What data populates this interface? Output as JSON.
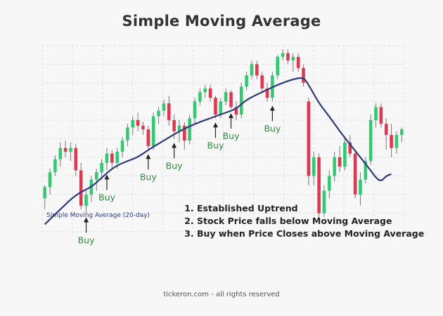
{
  "header": {
    "title": "Simple Moving Average"
  },
  "footer": {
    "text": "tickeron.com - all rights reserved"
  },
  "notes": [
    "Established Uptrend",
    "Stock Price falls below Moving Average",
    "Buy when Price Closes above Moving Average"
  ],
  "sma_label": "Simple Moving Average (20-day)",
  "colors": {
    "up": "#2ecc71",
    "down": "#e8334f",
    "sma": "#2e3b7a",
    "buy": "#2e8b3e",
    "wick": "#777777"
  },
  "chart_data": {
    "type": "candlestick",
    "title": "Simple Moving Average",
    "xlabel": "",
    "ylabel": "",
    "ylim": [
      0,
      100
    ],
    "grid": true,
    "candles": [
      {
        "o": 18,
        "h": 25,
        "l": 12,
        "c": 24
      },
      {
        "o": 24,
        "h": 34,
        "l": 20,
        "c": 32
      },
      {
        "o": 32,
        "h": 41,
        "l": 30,
        "c": 39
      },
      {
        "o": 39,
        "h": 48,
        "l": 35,
        "c": 45
      },
      {
        "o": 45,
        "h": 49,
        "l": 40,
        "c": 43
      },
      {
        "o": 43,
        "h": 48,
        "l": 38,
        "c": 45
      },
      {
        "o": 45,
        "h": 47,
        "l": 30,
        "c": 33
      },
      {
        "o": 33,
        "h": 37,
        "l": 12,
        "c": 14
      },
      {
        "o": 14,
        "h": 22,
        "l": 10,
        "c": 20
      },
      {
        "o": 20,
        "h": 30,
        "l": 16,
        "c": 28
      },
      {
        "o": 28,
        "h": 34,
        "l": 22,
        "c": 32
      },
      {
        "o": 32,
        "h": 39,
        "l": 28,
        "c": 37
      },
      {
        "o": 37,
        "h": 45,
        "l": 33,
        "c": 42
      },
      {
        "o": 42,
        "h": 44,
        "l": 34,
        "c": 37
      },
      {
        "o": 37,
        "h": 45,
        "l": 34,
        "c": 43
      },
      {
        "o": 43,
        "h": 51,
        "l": 40,
        "c": 49
      },
      {
        "o": 49,
        "h": 58,
        "l": 46,
        "c": 56
      },
      {
        "o": 56,
        "h": 62,
        "l": 52,
        "c": 60
      },
      {
        "o": 60,
        "h": 64,
        "l": 54,
        "c": 57
      },
      {
        "o": 57,
        "h": 59,
        "l": 52,
        "c": 55
      },
      {
        "o": 55,
        "h": 57,
        "l": 44,
        "c": 46
      },
      {
        "o": 46,
        "h": 64,
        "l": 44,
        "c": 62
      },
      {
        "o": 62,
        "h": 67,
        "l": 58,
        "c": 65
      },
      {
        "o": 65,
        "h": 71,
        "l": 62,
        "c": 69
      },
      {
        "o": 69,
        "h": 73,
        "l": 57,
        "c": 60
      },
      {
        "o": 60,
        "h": 63,
        "l": 50,
        "c": 54
      },
      {
        "o": 54,
        "h": 60,
        "l": 48,
        "c": 57
      },
      {
        "o": 57,
        "h": 59,
        "l": 44,
        "c": 49
      },
      {
        "o": 49,
        "h": 63,
        "l": 47,
        "c": 61
      },
      {
        "o": 61,
        "h": 72,
        "l": 58,
        "c": 70
      },
      {
        "o": 70,
        "h": 77,
        "l": 68,
        "c": 75
      },
      {
        "o": 75,
        "h": 79,
        "l": 72,
        "c": 77
      },
      {
        "o": 77,
        "h": 79,
        "l": 70,
        "c": 72
      },
      {
        "o": 72,
        "h": 73,
        "l": 61,
        "c": 63
      },
      {
        "o": 63,
        "h": 72,
        "l": 61,
        "c": 70
      },
      {
        "o": 70,
        "h": 77,
        "l": 68,
        "c": 75
      },
      {
        "o": 75,
        "h": 76,
        "l": 66,
        "c": 67
      },
      {
        "o": 67,
        "h": 70,
        "l": 60,
        "c": 63
      },
      {
        "o": 63,
        "h": 80,
        "l": 61,
        "c": 78
      },
      {
        "o": 78,
        "h": 86,
        "l": 76,
        "c": 84
      },
      {
        "o": 84,
        "h": 92,
        "l": 82,
        "c": 90
      },
      {
        "o": 90,
        "h": 92,
        "l": 82,
        "c": 84
      },
      {
        "o": 84,
        "h": 86,
        "l": 75,
        "c": 77
      },
      {
        "o": 77,
        "h": 80,
        "l": 70,
        "c": 72
      },
      {
        "o": 72,
        "h": 86,
        "l": 70,
        "c": 84
      },
      {
        "o": 84,
        "h": 95,
        "l": 82,
        "c": 94
      },
      {
        "o": 94,
        "h": 98,
        "l": 92,
        "c": 96
      },
      {
        "o": 96,
        "h": 98,
        "l": 90,
        "c": 92
      },
      {
        "o": 92,
        "h": 96,
        "l": 86,
        "c": 94
      },
      {
        "o": 94,
        "h": 96,
        "l": 86,
        "c": 88
      },
      {
        "o": 88,
        "h": 90,
        "l": 78,
        "c": 80
      },
      {
        "o": 70,
        "h": 72,
        "l": 25,
        "c": 30
      },
      {
        "o": 30,
        "h": 43,
        "l": 25,
        "c": 40
      },
      {
        "o": 40,
        "h": 42,
        "l": 5,
        "c": 10
      },
      {
        "o": 10,
        "h": 25,
        "l": 8,
        "c": 22
      },
      {
        "o": 22,
        "h": 33,
        "l": 18,
        "c": 30
      },
      {
        "o": 30,
        "h": 43,
        "l": 27,
        "c": 40
      },
      {
        "o": 40,
        "h": 46,
        "l": 32,
        "c": 35
      },
      {
        "o": 35,
        "h": 50,
        "l": 33,
        "c": 48
      },
      {
        "o": 48,
        "h": 52,
        "l": 40,
        "c": 42
      },
      {
        "o": 42,
        "h": 43,
        "l": 18,
        "c": 20
      },
      {
        "o": 20,
        "h": 32,
        "l": 14,
        "c": 28
      },
      {
        "o": 28,
        "h": 40,
        "l": 26,
        "c": 38
      },
      {
        "o": 38,
        "h": 63,
        "l": 36,
        "c": 60
      },
      {
        "o": 60,
        "h": 69,
        "l": 56,
        "c": 67
      },
      {
        "o": 67,
        "h": 69,
        "l": 56,
        "c": 58
      },
      {
        "o": 58,
        "h": 61,
        "l": 44,
        "c": 52
      },
      {
        "o": 52,
        "h": 58,
        "l": 40,
        "c": 45
      },
      {
        "o": 45,
        "h": 54,
        "l": 42,
        "c": 52
      },
      {
        "o": 52,
        "h": 56,
        "l": 48,
        "c": 55
      }
    ],
    "sma": [
      {
        "i": 0,
        "v": 4
      },
      {
        "i": 3,
        "v": 12
      },
      {
        "i": 6,
        "v": 20
      },
      {
        "i": 9,
        "v": 24
      },
      {
        "i": 11,
        "v": 29
      },
      {
        "i": 13,
        "v": 34
      },
      {
        "i": 15,
        "v": 37
      },
      {
        "i": 18,
        "v": 40
      },
      {
        "i": 20,
        "v": 44
      },
      {
        "i": 23,
        "v": 49
      },
      {
        "i": 26,
        "v": 54
      },
      {
        "i": 29,
        "v": 58
      },
      {
        "i": 32,
        "v": 61
      },
      {
        "i": 35,
        "v": 64
      },
      {
        "i": 37,
        "v": 66
      },
      {
        "i": 39,
        "v": 71
      },
      {
        "i": 42,
        "v": 75
      },
      {
        "i": 45,
        "v": 79
      },
      {
        "i": 48,
        "v": 82
      },
      {
        "i": 50,
        "v": 83
      },
      {
        "i": 51,
        "v": 79
      },
      {
        "i": 53,
        "v": 69
      },
      {
        "i": 55,
        "v": 62
      },
      {
        "i": 57,
        "v": 54
      },
      {
        "i": 59,
        "v": 47
      },
      {
        "i": 61,
        "v": 40
      },
      {
        "i": 63,
        "v": 33
      },
      {
        "i": 64,
        "v": 29
      },
      {
        "i": 65,
        "v": 27
      },
      {
        "i": 66,
        "v": 30
      },
      {
        "i": 67,
        "v": 31
      }
    ],
    "buy_signals": [
      {
        "i": 8,
        "label": "Buy"
      },
      {
        "i": 12,
        "label": "Buy"
      },
      {
        "i": 20,
        "label": "Buy"
      },
      {
        "i": 25,
        "label": "Buy"
      },
      {
        "i": 33,
        "label": "Buy"
      },
      {
        "i": 36,
        "label": "Buy"
      },
      {
        "i": 44,
        "label": "Buy"
      }
    ]
  }
}
